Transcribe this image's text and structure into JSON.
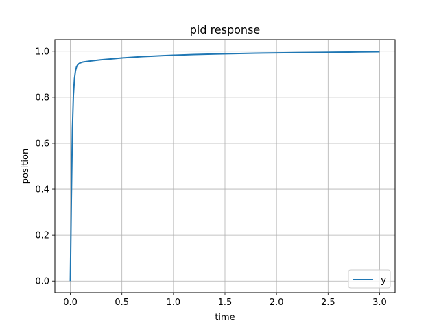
{
  "chart_data": {
    "type": "line",
    "title": "pid response",
    "xlabel": "time",
    "ylabel": "position",
    "xlim": [
      -0.15,
      3.15
    ],
    "ylim": [
      -0.05,
      1.05
    ],
    "xticks": [
      0.0,
      0.5,
      1.0,
      1.5,
      2.0,
      2.5,
      3.0
    ],
    "yticks": [
      0.0,
      0.2,
      0.4,
      0.6,
      0.8,
      1.0
    ],
    "xtick_labels": [
      "0.0",
      "0.5",
      "1.0",
      "1.5",
      "2.0",
      "2.5",
      "3.0"
    ],
    "ytick_labels": [
      "0.0",
      "0.2",
      "0.4",
      "0.6",
      "0.8",
      "1.0"
    ],
    "grid": true,
    "legend_position": "lower-right",
    "series": [
      {
        "name": "y",
        "color": "#1f77b4",
        "x": [
          0.0,
          0.01,
          0.02,
          0.03,
          0.04,
          0.05,
          0.06,
          0.07,
          0.08,
          0.09,
          0.1,
          0.12,
          0.15,
          0.2,
          0.3,
          0.4,
          0.5,
          0.6,
          0.7,
          0.8,
          0.9,
          1.0,
          1.2,
          1.4,
          1.6,
          1.8,
          2.0,
          2.2,
          2.4,
          2.6,
          2.8,
          3.0
        ],
        "y": [
          0.0,
          0.36,
          0.66,
          0.81,
          0.88,
          0.915,
          0.932,
          0.94,
          0.945,
          0.948,
          0.95,
          0.953,
          0.955,
          0.958,
          0.963,
          0.967,
          0.971,
          0.974,
          0.977,
          0.979,
          0.981,
          0.983,
          0.986,
          0.988,
          0.99,
          0.992,
          0.993,
          0.994,
          0.995,
          0.996,
          0.997,
          0.998
        ]
      }
    ]
  }
}
